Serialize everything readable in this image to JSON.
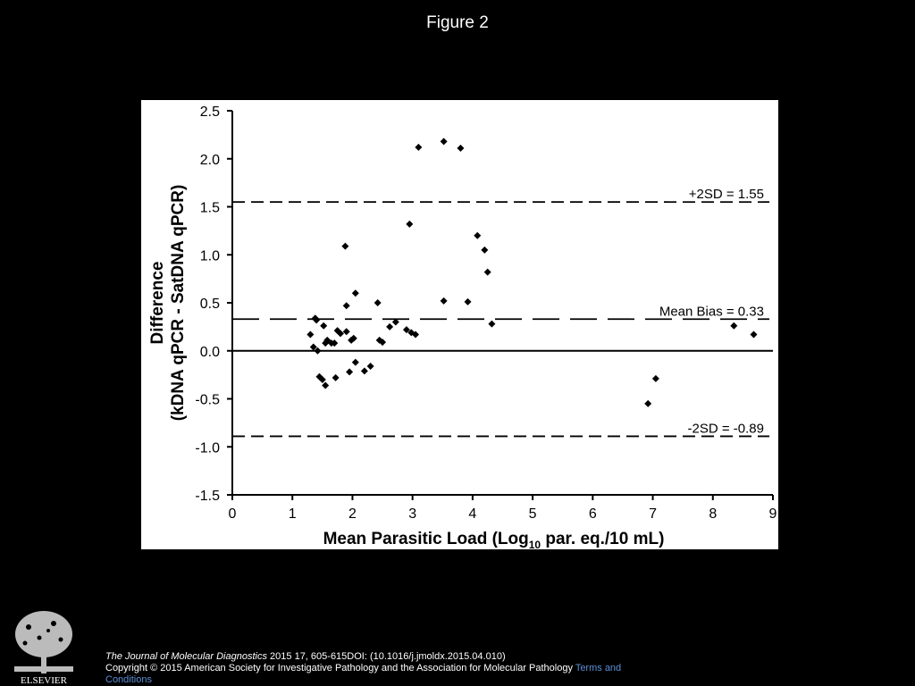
{
  "figure_title": "Figure 2",
  "footer": {
    "journal": "The Journal of Molecular Diagnostics",
    "citation": "2015 17, 605-615DOI: (10.1016/j.jmoldx.2015.04.010)",
    "copyright": "Copyright © 2015 American Society for Investigative Pathology and the Association for Molecular Pathology",
    "terms_link": "Terms and Conditions"
  },
  "logo": {
    "text": "ELSEVIER"
  },
  "chart_data": {
    "type": "scatter",
    "title": "",
    "ylabel_line1": "Difference",
    "ylabel_line2": "(kDNA qPCR - SatDNA qPCR)",
    "xlabel_pre": "Mean Parasitic Load (Log",
    "xlabel_sub": "10",
    "xlabel_post": " par. eq./10 mL)",
    "xlim": [
      0,
      9
    ],
    "ylim": [
      -1.5,
      2.5
    ],
    "x_ticks": [
      0,
      1,
      2,
      3,
      4,
      5,
      6,
      7,
      8,
      9
    ],
    "x_tick_labels": [
      "0",
      "1",
      "2",
      "3",
      "4",
      "5",
      "6",
      "7",
      "8",
      "9"
    ],
    "y_ticks": [
      2.5,
      2.0,
      1.5,
      1.0,
      0.5,
      0.0,
      -0.5,
      -1.0,
      -1.5
    ],
    "y_tick_labels": [
      "2.5",
      "2.0",
      "1.5",
      "1.0",
      "0.5",
      "0.0",
      "-0.5",
      "-1.0",
      "-1.5"
    ],
    "grid": false,
    "reference_lines": [
      {
        "label": "+2SD = 1.55",
        "y": 1.55,
        "style": "dashed"
      },
      {
        "label": "Mean Bias = 0.33",
        "y": 0.33,
        "style": "long-dashed"
      },
      {
        "label": "-2SD = -0.89",
        "y": -0.89,
        "style": "dashed"
      }
    ],
    "zero_line": 0,
    "marker": "diamond",
    "points": [
      [
        1.3,
        0.17
      ],
      [
        1.38,
        0.34
      ],
      [
        1.4,
        0.32
      ],
      [
        1.35,
        0.04
      ],
      [
        1.42,
        0.0
      ],
      [
        1.45,
        -0.27
      ],
      [
        1.5,
        -0.3
      ],
      [
        1.55,
        -0.36
      ],
      [
        1.52,
        0.26
      ],
      [
        1.58,
        0.11
      ],
      [
        1.55,
        0.08
      ],
      [
        1.65,
        0.08
      ],
      [
        1.7,
        0.08
      ],
      [
        1.72,
        -0.28
      ],
      [
        1.75,
        0.21
      ],
      [
        1.8,
        0.18
      ],
      [
        1.9,
        0.2
      ],
      [
        1.88,
        1.09
      ],
      [
        1.9,
        0.47
      ],
      [
        1.95,
        -0.22
      ],
      [
        1.98,
        0.11
      ],
      [
        2.02,
        0.13
      ],
      [
        2.05,
        0.6
      ],
      [
        2.05,
        -0.12
      ],
      [
        2.2,
        -0.21
      ],
      [
        2.3,
        -0.16
      ],
      [
        2.42,
        0.5
      ],
      [
        2.45,
        0.11
      ],
      [
        2.5,
        0.09
      ],
      [
        2.62,
        0.25
      ],
      [
        2.72,
        0.3
      ],
      [
        2.9,
        0.22
      ],
      [
        2.95,
        1.32
      ],
      [
        2.98,
        0.19
      ],
      [
        3.05,
        0.17
      ],
      [
        3.1,
        2.12
      ],
      [
        3.52,
        2.18
      ],
      [
        3.52,
        0.52
      ],
      [
        3.8,
        2.11
      ],
      [
        3.92,
        0.51
      ],
      [
        4.08,
        1.2
      ],
      [
        4.2,
        1.05
      ],
      [
        4.25,
        0.82
      ],
      [
        4.32,
        0.28
      ],
      [
        6.92,
        -0.55
      ],
      [
        7.05,
        -0.29
      ],
      [
        8.35,
        0.26
      ],
      [
        8.68,
        0.17
      ]
    ]
  }
}
